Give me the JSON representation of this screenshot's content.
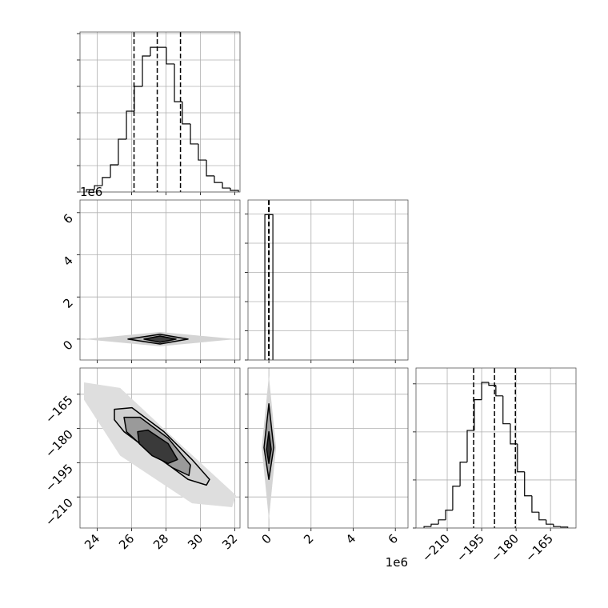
{
  "chart_data": [
    {
      "type": "histogram",
      "xlim": [
        23.0,
        32.3
      ],
      "xticks": [
        24,
        26,
        28,
        30,
        32
      ],
      "ylim": [
        0,
        6.06
      ],
      "yticks": [
        0,
        1,
        2,
        3,
        4,
        5,
        6
      ],
      "bins": [
        23.37,
        23.84,
        24.3,
        24.77,
        25.23,
        25.7,
        26.16,
        26.63,
        27.09,
        27.56,
        28.02,
        28.49,
        28.95,
        29.42,
        29.88,
        30.35,
        30.81,
        31.28,
        31.74,
        32.21
      ],
      "counts": [
        0.09,
        0.24,
        0.55,
        1.03,
        2.0,
        3.06,
        4.0,
        5.15,
        5.48,
        5.48,
        4.85,
        3.42,
        2.58,
        1.82,
        1.21,
        0.61,
        0.36,
        0.15,
        0.06
      ],
      "quantiles": [
        26.14,
        27.49,
        28.84
      ],
      "grid": true,
      "x_tick_labels": false,
      "y_tick_labels": false
    },
    {
      "type": "contour",
      "xlim": [
        23.0,
        32.3
      ],
      "xticks": [
        24,
        26,
        28,
        30,
        32
      ],
      "ylim": [
        -0.99,
        6.6
      ],
      "yticks": [
        0,
        2,
        4,
        6
      ],
      "y_offset_label": "1e6",
      "cloud": {
        "color": "#d4d4d4",
        "x": [
          23.23,
          27.65,
          32.07,
          27.65
        ],
        "y": [
          0,
          0.34,
          0,
          -0.34
        ]
      },
      "contours": [
        {
          "color": "#b8b8b8",
          "x": [
            25.79,
            27.65,
            29.28,
            27.65
          ],
          "y": [
            0,
            0.23,
            0,
            -0.23
          ]
        },
        {
          "color": "#404040",
          "x": [
            26.72,
            27.65,
            28.58,
            27.65
          ],
          "y": [
            0,
            0.15,
            0,
            -0.15
          ]
        }
      ],
      "grid": true,
      "x_tick_labels": false,
      "y_tick_labels": true
    },
    {
      "type": "histogram",
      "xlim": [
        -0.99,
        6.6
      ],
      "xticks": [
        0,
        2,
        4,
        6
      ],
      "ylim": [
        0,
        5.48
      ],
      "yticks": [
        0,
        1,
        2,
        3,
        4,
        5
      ],
      "bins": [
        -0.19,
        0.19
      ],
      "counts": [
        4.98
      ],
      "quantiles": [
        -0.01,
        0.0,
        0.01
      ],
      "grid": true,
      "x_tick_labels": false,
      "y_tick_labels": false
    },
    {
      "type": "contour",
      "xlim": [
        23.0,
        32.3
      ],
      "xticks": [
        24,
        26,
        28,
        30,
        32
      ],
      "ylim": [
        -223.6,
        -153.5
      ],
      "yticks": [
        {
          "value": -210,
          "label": "−210"
        },
        {
          "value": -195,
          "label": "−195"
        },
        {
          "value": -180,
          "label": "−180"
        },
        {
          "value": -165,
          "label": "−165"
        }
      ],
      "cloud": {
        "color": "#dedede",
        "x": [
          23.23,
          25.33,
          29.05,
          32.07,
          31.84,
          29.51,
          25.33,
          23.23
        ],
        "y": [
          -159.8,
          -162.2,
          -188.4,
          -209.3,
          -214.5,
          -212.8,
          -191.9,
          -167.4
        ]
      },
      "contours": [
        {
          "color": "#d0d0d0",
          "x": [
            25.0,
            26.02,
            27.88,
            29.51,
            30.53,
            30.35,
            29.28,
            27.42,
            25.56,
            25.0
          ],
          "y": [
            -171.6,
            -170.9,
            -181.4,
            -193.6,
            -202.3,
            -204.8,
            -202.3,
            -191.9,
            -181.4,
            -176.2
          ]
        },
        {
          "color": "#9a9a9a",
          "x": [
            25.56,
            26.49,
            28.12,
            29.42,
            29.33,
            28.35,
            26.72,
            25.7
          ],
          "y": [
            -175.1,
            -175.1,
            -184.2,
            -196.0,
            -200.6,
            -197.1,
            -188.4,
            -181.4
          ]
        },
        {
          "color": "#3a3a3a",
          "x": [
            26.35,
            26.95,
            28.12,
            28.67,
            28.12,
            27.19,
            26.44
          ],
          "y": [
            -181.4,
            -180.7,
            -186.6,
            -193.6,
            -195.3,
            -191.9,
            -186.6
          ]
        }
      ],
      "grid": true,
      "x_tick_labels": true,
      "y_tick_labels": true
    },
    {
      "type": "contour",
      "xlim": [
        -0.99,
        6.6
      ],
      "xticks": [
        0,
        2,
        4,
        6
      ],
      "x_offset_label": "1e6",
      "ylim": [
        -223.6,
        -153.5
      ],
      "yticks": [
        {
          "value": -210,
          "label": "−210"
        },
        {
          "value": -195,
          "label": "−195"
        },
        {
          "value": -180,
          "label": "−180"
        },
        {
          "value": -165,
          "label": "−165"
        }
      ],
      "cloud": {
        "color": "#d4d4d4",
        "x": [
          0,
          0.34,
          0,
          -0.34
        ],
        "y": [
          -157.0,
          -188.4,
          -219.8,
          -188.4
        ]
      },
      "contours": [
        {
          "color": "#a0a0a0",
          "x": [
            0,
            0.23,
            0,
            -0.23
          ],
          "y": [
            -169.2,
            -188.4,
            -202.3,
            -188.4
          ]
        },
        {
          "color": "#303030",
          "x": [
            0,
            0.11,
            0,
            -0.11
          ],
          "y": [
            -181.4,
            -189.1,
            -195.3,
            -189.1
          ]
        }
      ],
      "grid": true,
      "x_tick_labels": true,
      "y_tick_labels": false
    },
    {
      "type": "histogram",
      "xlim": [
        -223.6,
        -153.9
      ],
      "xticks": [
        {
          "value": -210,
          "label": "−210"
        },
        {
          "value": -195,
          "label": "−195"
        },
        {
          "value": -180,
          "label": "−180"
        },
        {
          "value": -165,
          "label": "−165"
        }
      ],
      "ylim": [
        0,
        3.33
      ],
      "yticks": [
        0,
        1,
        2,
        3
      ],
      "bins": [
        -220.1,
        -217.0,
        -213.8,
        -210.7,
        -207.6,
        -204.4,
        -201.3,
        -198.2,
        -195.0,
        -191.9,
        -188.8,
        -185.7,
        -182.5,
        -179.4,
        -176.3,
        -173.1,
        -170.0,
        -166.9,
        -163.7,
        -160.6,
        -157.5
      ],
      "counts": [
        0.03,
        0.08,
        0.17,
        0.37,
        0.87,
        1.37,
        2.03,
        2.67,
        3.03,
        2.97,
        2.75,
        2.17,
        1.75,
        1.17,
        0.67,
        0.33,
        0.17,
        0.08,
        0.03,
        0.02
      ],
      "quantiles": [
        -198.5,
        -189.4,
        -180.3
      ],
      "grid": true,
      "x_tick_labels": true,
      "y_tick_labels": false
    }
  ]
}
